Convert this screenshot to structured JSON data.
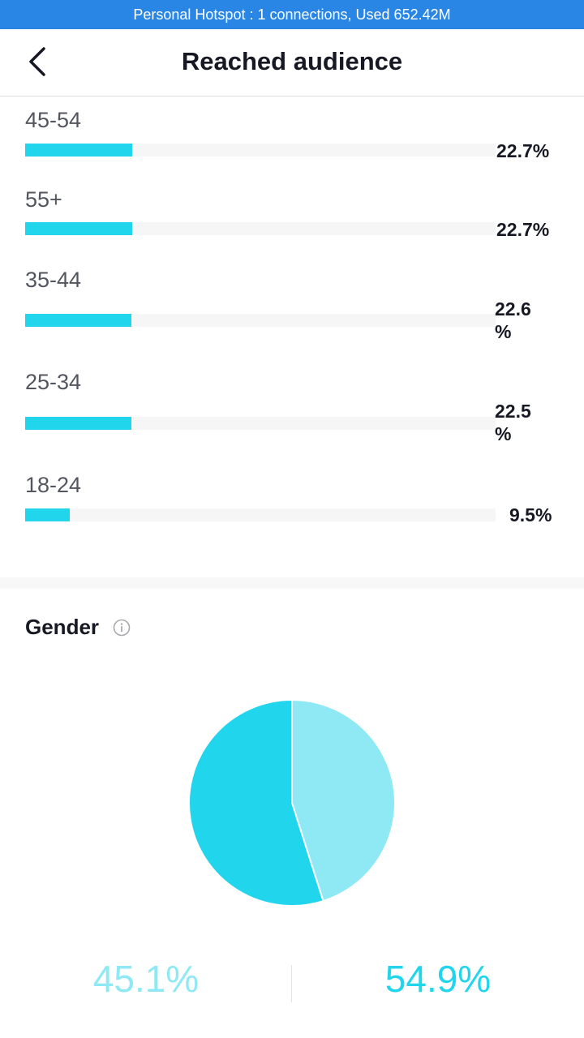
{
  "status_bar": {
    "text": "Personal Hotspot : 1 connections, Used 652.42M"
  },
  "header": {
    "title": "Reached audience",
    "back_icon": "chevron-left-icon"
  },
  "age": {
    "rows": [
      {
        "label": "45-54",
        "value": 22.7,
        "percent": "22.7%"
      },
      {
        "label": "55+",
        "value": 22.7,
        "percent": "22.7%"
      },
      {
        "label": "35-44",
        "value": 22.6,
        "percent_line1": "22.6",
        "percent_line2": "%"
      },
      {
        "label": "25-34",
        "value": 22.5,
        "percent_line1": "22.5",
        "percent_line2": "%"
      },
      {
        "label": "18-24",
        "value": 9.5,
        "percent": "9.5%"
      }
    ],
    "bar_color": "#20d5ec",
    "track_color": "#f6f6f7"
  },
  "gender": {
    "title": "Gender",
    "info_icon": "info-circle-icon",
    "left_percent": "45.1%",
    "right_percent": "54.9%",
    "light_color": "#8fe9f4",
    "dark_color": "#20d5ec"
  },
  "chart_data": [
    {
      "type": "bar",
      "categories": [
        "45-54",
        "55+",
        "35-44",
        "25-34",
        "18-24"
      ],
      "values": [
        22.7,
        22.7,
        22.6,
        22.5,
        9.5
      ],
      "title": "",
      "xlabel": "",
      "ylabel": ""
    },
    {
      "type": "pie",
      "categories": [
        "",
        ""
      ],
      "values": [
        45.1,
        54.9
      ],
      "title": "Gender"
    }
  ]
}
